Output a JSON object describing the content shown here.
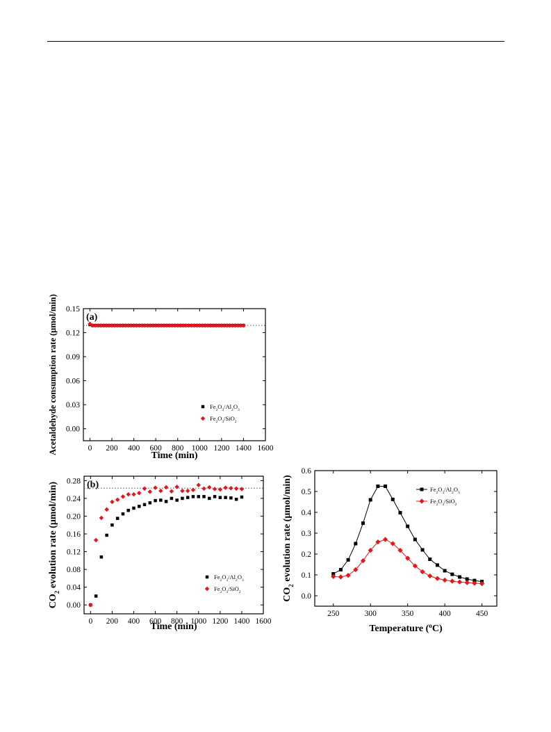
{
  "chart_data": [
    {
      "id": "a",
      "type": "scatter",
      "panel_label": "(a)",
      "xlabel": "Time (min)",
      "ylabel": "Acetaldehyde consumption rate (μmol/min)",
      "xlim": [
        -60,
        1600
      ],
      "ylim": [
        -0.015,
        0.15
      ],
      "xticks": [
        "0",
        "200",
        "400",
        "600",
        "800",
        "1000",
        "1200",
        "1400",
        "1600"
      ],
      "yticks": [
        "0.00",
        "0.03",
        "0.06",
        "0.09",
        "0.12",
        "0.15"
      ],
      "reference_line": 0.129,
      "legend_position": "bottom-right",
      "series": [
        {
          "name": "Fe2O3/Al2O3",
          "name_parts": [
            [
              "Fe",
              ""
            ],
            [
              "2",
              "sub"
            ],
            [
              "O",
              ""
            ],
            [
              "3",
              "sub"
            ],
            [
              "/Al",
              ""
            ],
            [
              "2",
              "sub"
            ],
            [
              "O",
              ""
            ],
            [
              "3",
              "sub"
            ]
          ],
          "color": "#000000",
          "marker": "square",
          "x": [
            0,
            25,
            50,
            75,
            100,
            125,
            150,
            175,
            200,
            225,
            250,
            275,
            300,
            325,
            350,
            375,
            400,
            425,
            450,
            475,
            500,
            525,
            550,
            575,
            600,
            625,
            650,
            675,
            700,
            725,
            750,
            775,
            800,
            825,
            850,
            875,
            900,
            925,
            950,
            975,
            1000,
            1025,
            1050,
            1075,
            1100,
            1125,
            1150,
            1175,
            1200,
            1225,
            1250,
            1275,
            1300,
            1325,
            1350,
            1375,
            1400
          ],
          "y": [
            0.13,
            0.129,
            0.129,
            0.129,
            0.129,
            0.129,
            0.129,
            0.129,
            0.129,
            0.129,
            0.129,
            0.129,
            0.129,
            0.129,
            0.129,
            0.129,
            0.129,
            0.129,
            0.129,
            0.129,
            0.129,
            0.129,
            0.129,
            0.129,
            0.129,
            0.129,
            0.129,
            0.129,
            0.129,
            0.129,
            0.129,
            0.129,
            0.129,
            0.129,
            0.129,
            0.129,
            0.129,
            0.129,
            0.129,
            0.129,
            0.129,
            0.129,
            0.129,
            0.129,
            0.129,
            0.129,
            0.129,
            0.129,
            0.129,
            0.129,
            0.129,
            0.129,
            0.129,
            0.129,
            0.129,
            0.129,
            0.129
          ]
        },
        {
          "name": "Fe2O3/SiO2",
          "name_parts": [
            [
              "Fe",
              ""
            ],
            [
              "2",
              "sub"
            ],
            [
              "O",
              ""
            ],
            [
              "3",
              "sub"
            ],
            [
              "/SiO",
              ""
            ],
            [
              "2",
              "sub"
            ]
          ],
          "color": "#e8141a",
          "marker": "diamond",
          "x": [
            0,
            25,
            50,
            75,
            100,
            125,
            150,
            175,
            200,
            225,
            250,
            275,
            300,
            325,
            350,
            375,
            400,
            425,
            450,
            475,
            500,
            525,
            550,
            575,
            600,
            625,
            650,
            675,
            700,
            725,
            750,
            775,
            800,
            825,
            850,
            875,
            900,
            925,
            950,
            975,
            1000,
            1025,
            1050,
            1075,
            1100,
            1125,
            1150,
            1175,
            1200,
            1225,
            1250,
            1275,
            1300,
            1325,
            1350,
            1375,
            1400
          ],
          "y": [
            0.131,
            0.129,
            0.129,
            0.129,
            0.129,
            0.129,
            0.129,
            0.129,
            0.129,
            0.129,
            0.129,
            0.129,
            0.129,
            0.129,
            0.129,
            0.129,
            0.129,
            0.129,
            0.129,
            0.129,
            0.129,
            0.129,
            0.129,
            0.129,
            0.129,
            0.129,
            0.129,
            0.129,
            0.129,
            0.129,
            0.129,
            0.129,
            0.129,
            0.129,
            0.129,
            0.129,
            0.129,
            0.129,
            0.129,
            0.129,
            0.129,
            0.129,
            0.129,
            0.129,
            0.129,
            0.129,
            0.129,
            0.129,
            0.129,
            0.129,
            0.129,
            0.129,
            0.129,
            0.129,
            0.129,
            0.129,
            0.129
          ]
        }
      ]
    },
    {
      "id": "b",
      "type": "scatter",
      "panel_label": "(b)",
      "xlabel": "Time (min)",
      "ylabel": "CO2 evolution rate (μmol/min)",
      "ylabel_parts": [
        [
          "CO",
          ""
        ],
        [
          "2",
          "sub"
        ],
        [
          " evolution rate (μmol/min)",
          ""
        ]
      ],
      "xlim": [
        -60,
        1600
      ],
      "ylim": [
        -0.02,
        0.29
      ],
      "xticks": [
        "0",
        "200",
        "400",
        "600",
        "800",
        "1000",
        "1200",
        "1400",
        "1600"
      ],
      "yticks": [
        "0.00",
        "0.04",
        "0.08",
        "0.12",
        "0.16",
        "0.20",
        "0.24",
        "0.28"
      ],
      "reference_line": 0.263,
      "legend_position": "bottom-right",
      "series": [
        {
          "name": "Fe2O3/Al2O3",
          "name_parts": [
            [
              "Fe",
              ""
            ],
            [
              "2",
              "sub"
            ],
            [
              "O",
              ""
            ],
            [
              "3",
              "sub"
            ],
            [
              "/Al",
              ""
            ],
            [
              "2",
              "sub"
            ],
            [
              "O",
              ""
            ],
            [
              "3",
              "sub"
            ]
          ],
          "color": "#000000",
          "marker": "square",
          "x": [
            0,
            50,
            100,
            150,
            200,
            250,
            300,
            350,
            400,
            450,
            500,
            550,
            600,
            650,
            700,
            750,
            800,
            850,
            900,
            950,
            1000,
            1050,
            1100,
            1150,
            1200,
            1250,
            1300,
            1350,
            1400
          ],
          "y": [
            0.0,
            0.02,
            0.108,
            0.157,
            0.18,
            0.195,
            0.205,
            0.213,
            0.218,
            0.222,
            0.226,
            0.23,
            0.235,
            0.236,
            0.233,
            0.24,
            0.236,
            0.24,
            0.242,
            0.244,
            0.244,
            0.244,
            0.24,
            0.244,
            0.242,
            0.242,
            0.241,
            0.238,
            0.243
          ]
        },
        {
          "name": "Fe2O3/SiO2",
          "name_parts": [
            [
              "Fe",
              ""
            ],
            [
              "2",
              "sub"
            ],
            [
              "O",
              ""
            ],
            [
              "3",
              "sub"
            ],
            [
              "/SiO",
              ""
            ],
            [
              "2",
              "sub"
            ]
          ],
          "color": "#e8141a",
          "marker": "diamond",
          "x": [
            0,
            50,
            100,
            150,
            200,
            250,
            300,
            350,
            400,
            450,
            500,
            550,
            600,
            650,
            700,
            750,
            800,
            850,
            900,
            950,
            1000,
            1050,
            1100,
            1150,
            1200,
            1250,
            1300,
            1350,
            1400
          ],
          "y": [
            0.0,
            0.146,
            0.196,
            0.215,
            0.232,
            0.237,
            0.244,
            0.249,
            0.249,
            0.252,
            0.262,
            0.255,
            0.264,
            0.257,
            0.265,
            0.256,
            0.266,
            0.257,
            0.257,
            0.259,
            0.27,
            0.262,
            0.265,
            0.261,
            0.26,
            0.264,
            0.263,
            0.262,
            0.261
          ]
        }
      ]
    },
    {
      "id": "c",
      "type": "line",
      "xlabel": "Temperature (°C)",
      "xlabel_parts": [
        [
          "Temperature (",
          ""
        ],
        [
          "o",
          "sup"
        ],
        [
          "C)",
          ""
        ]
      ],
      "ylabel": "CO2 evolution rate (μmol/min)",
      "ylabel_parts": [
        [
          "CO",
          ""
        ],
        [
          "2",
          "sub"
        ],
        [
          " evolution rate (μmol/min)",
          ""
        ]
      ],
      "xlim": [
        225,
        470
      ],
      "ylim": [
        -0.05,
        0.6
      ],
      "xticks": [
        "250",
        "300",
        "350",
        "400",
        "450"
      ],
      "yticks": [
        "0.0",
        "0.1",
        "0.2",
        "0.3",
        "0.4",
        "0.5",
        "0.6"
      ],
      "legend_position": "top-right",
      "series": [
        {
          "name": "Fe2O3/Al2O3",
          "name_parts": [
            [
              "Fe",
              ""
            ],
            [
              "2",
              "sub"
            ],
            [
              "O",
              ""
            ],
            [
              "3",
              "sub"
            ],
            [
              "/Al",
              ""
            ],
            [
              "2",
              "sub"
            ],
            [
              "O",
              ""
            ],
            [
              "3",
              "sub"
            ]
          ],
          "color": "#000000",
          "marker": "square",
          "x": [
            250,
            260,
            270,
            280,
            290,
            300,
            310,
            320,
            330,
            340,
            350,
            360,
            370,
            380,
            390,
            400,
            410,
            420,
            430,
            440,
            450
          ],
          "y": [
            0.105,
            0.125,
            0.172,
            0.25,
            0.348,
            0.46,
            0.525,
            0.525,
            0.462,
            0.398,
            0.333,
            0.27,
            0.22,
            0.175,
            0.147,
            0.12,
            0.103,
            0.09,
            0.08,
            0.073,
            0.068
          ]
        },
        {
          "name": "Fe2O3/SiO2",
          "name_parts": [
            [
              "Fe",
              ""
            ],
            [
              "2",
              "sub"
            ],
            [
              "O",
              ""
            ],
            [
              "3",
              "sub"
            ],
            [
              "/SiO",
              ""
            ],
            [
              "2",
              "sub"
            ]
          ],
          "color": "#e8141a",
          "marker": "diamond",
          "x": [
            250,
            260,
            270,
            280,
            290,
            300,
            310,
            320,
            330,
            340,
            350,
            360,
            370,
            380,
            390,
            400,
            410,
            420,
            430,
            440,
            450
          ],
          "y": [
            0.092,
            0.09,
            0.098,
            0.125,
            0.168,
            0.218,
            0.258,
            0.27,
            0.25,
            0.218,
            0.18,
            0.143,
            0.115,
            0.095,
            0.083,
            0.075,
            0.07,
            0.066,
            0.063,
            0.06,
            0.058
          ]
        }
      ]
    }
  ]
}
